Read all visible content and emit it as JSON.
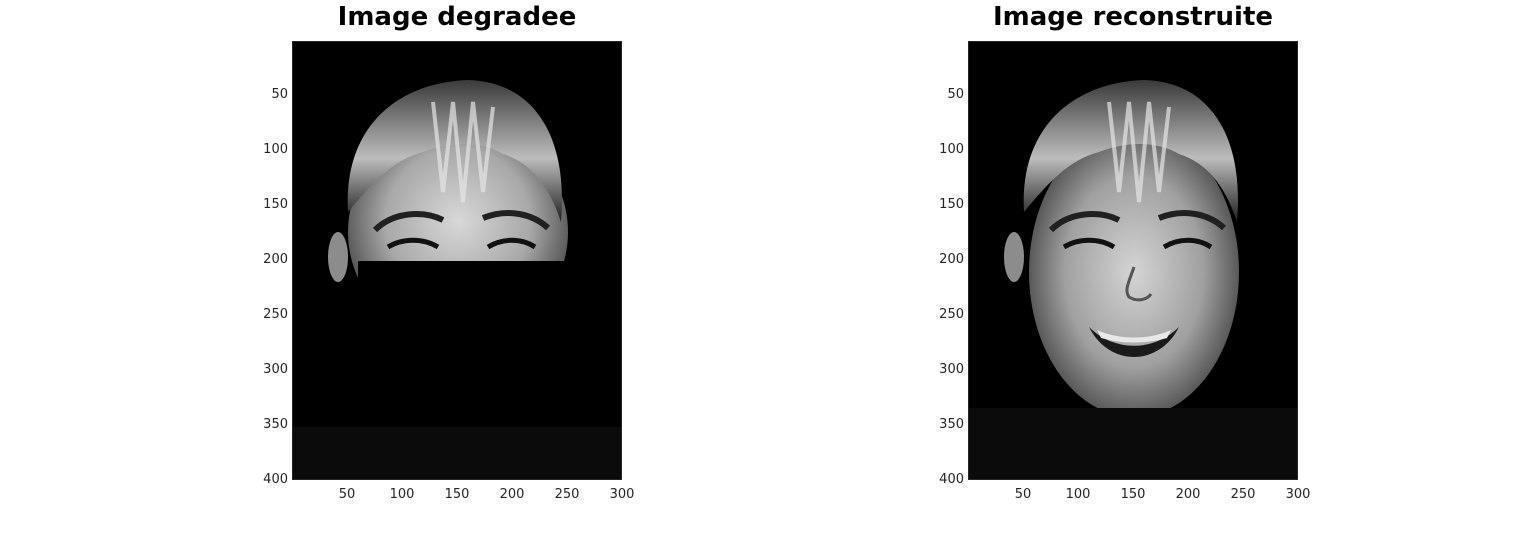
{
  "panels": [
    {
      "title": "Image degradee",
      "image": "grayscale-face-with-black-rectangle-occlusion",
      "x_ticks": [
        "50",
        "100",
        "150",
        "200",
        "250",
        "300"
      ],
      "y_ticks": [
        "50",
        "100",
        "150",
        "200",
        "250",
        "300",
        "350",
        "400"
      ]
    },
    {
      "title": "Image reconstruite",
      "image": "grayscale-face-reconstructed-smiling",
      "x_ticks": [
        "50",
        "100",
        "150",
        "200",
        "250",
        "300"
      ],
      "y_ticks": [
        "50",
        "100",
        "150",
        "200",
        "250",
        "300",
        "350",
        "400"
      ]
    }
  ],
  "axis_range": {
    "x": [
      0,
      300
    ],
    "y": [
      0,
      400
    ]
  },
  "colors": {
    "background": "#ffffff",
    "image_bg": "#000000",
    "tick_text": "#262626"
  }
}
